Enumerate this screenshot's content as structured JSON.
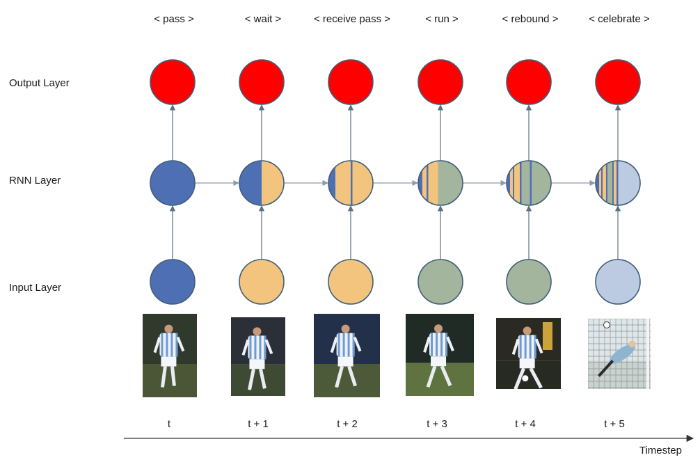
{
  "layers": {
    "output": "Output Layer",
    "rnn": "RNN Layer",
    "input": "Input Layer"
  },
  "axis": {
    "title": "Timestep"
  },
  "colors": {
    "output": "#ff0000",
    "input": [
      "#4f6fb5",
      "#f3c47d",
      "#f3c47d",
      "#a4b59e",
      "#a4b59e",
      "#bccbe2"
    ],
    "stripe_blue": "#4f6fb5",
    "stripe_yellow": "#f3c47d",
    "stripe_green": "#a4b59e",
    "stripe_pale": "#bccbe2"
  },
  "steps": [
    {
      "action": "< pass >",
      "tick": "t",
      "photo_icon": "soccer-player-standing-photo"
    },
    {
      "action": "< wait >",
      "tick": "t + 1",
      "photo_icon": "soccer-player-waiting-photo"
    },
    {
      "action": "< receive pass >",
      "tick": "t + 2",
      "photo_icon": "soccer-player-receiving-photo"
    },
    {
      "action": "< run >",
      "tick": "t + 3",
      "photo_icon": "soccer-player-running-photo"
    },
    {
      "action": "< rebound >",
      "tick": "t + 4",
      "photo_icon": "soccer-player-rebound-photo"
    },
    {
      "action": "< celebrate >",
      "tick": "t + 5",
      "photo_icon": "goalkeeper-diving-photo"
    }
  ]
}
